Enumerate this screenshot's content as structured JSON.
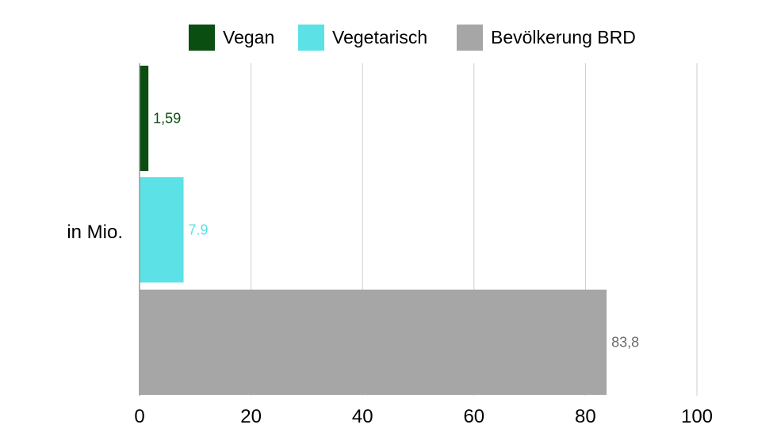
{
  "chart_data": {
    "type": "bar",
    "orientation": "horizontal",
    "categories": [
      "in Mio."
    ],
    "series": [
      {
        "name": "Vegan",
        "values": [
          1.59
        ],
        "label": "1,59",
        "color": "#0b4e12"
      },
      {
        "name": "Vegetarisch",
        "values": [
          7.9
        ],
        "label": "7.9",
        "color": "#5ce1e6"
      },
      {
        "name": "Bevölkerung BRD",
        "values": [
          83.8
        ],
        "label": "83,8",
        "color": "#a6a6a6"
      }
    ],
    "label_colors": [
      "#0b4e12",
      "#5ce1e6",
      "#6b6b6b"
    ],
    "xlim": [
      0,
      100
    ],
    "xticks": [
      "0",
      "20",
      "40",
      "60",
      "80",
      "100"
    ],
    "grid": "vertical",
    "legend": "top"
  }
}
